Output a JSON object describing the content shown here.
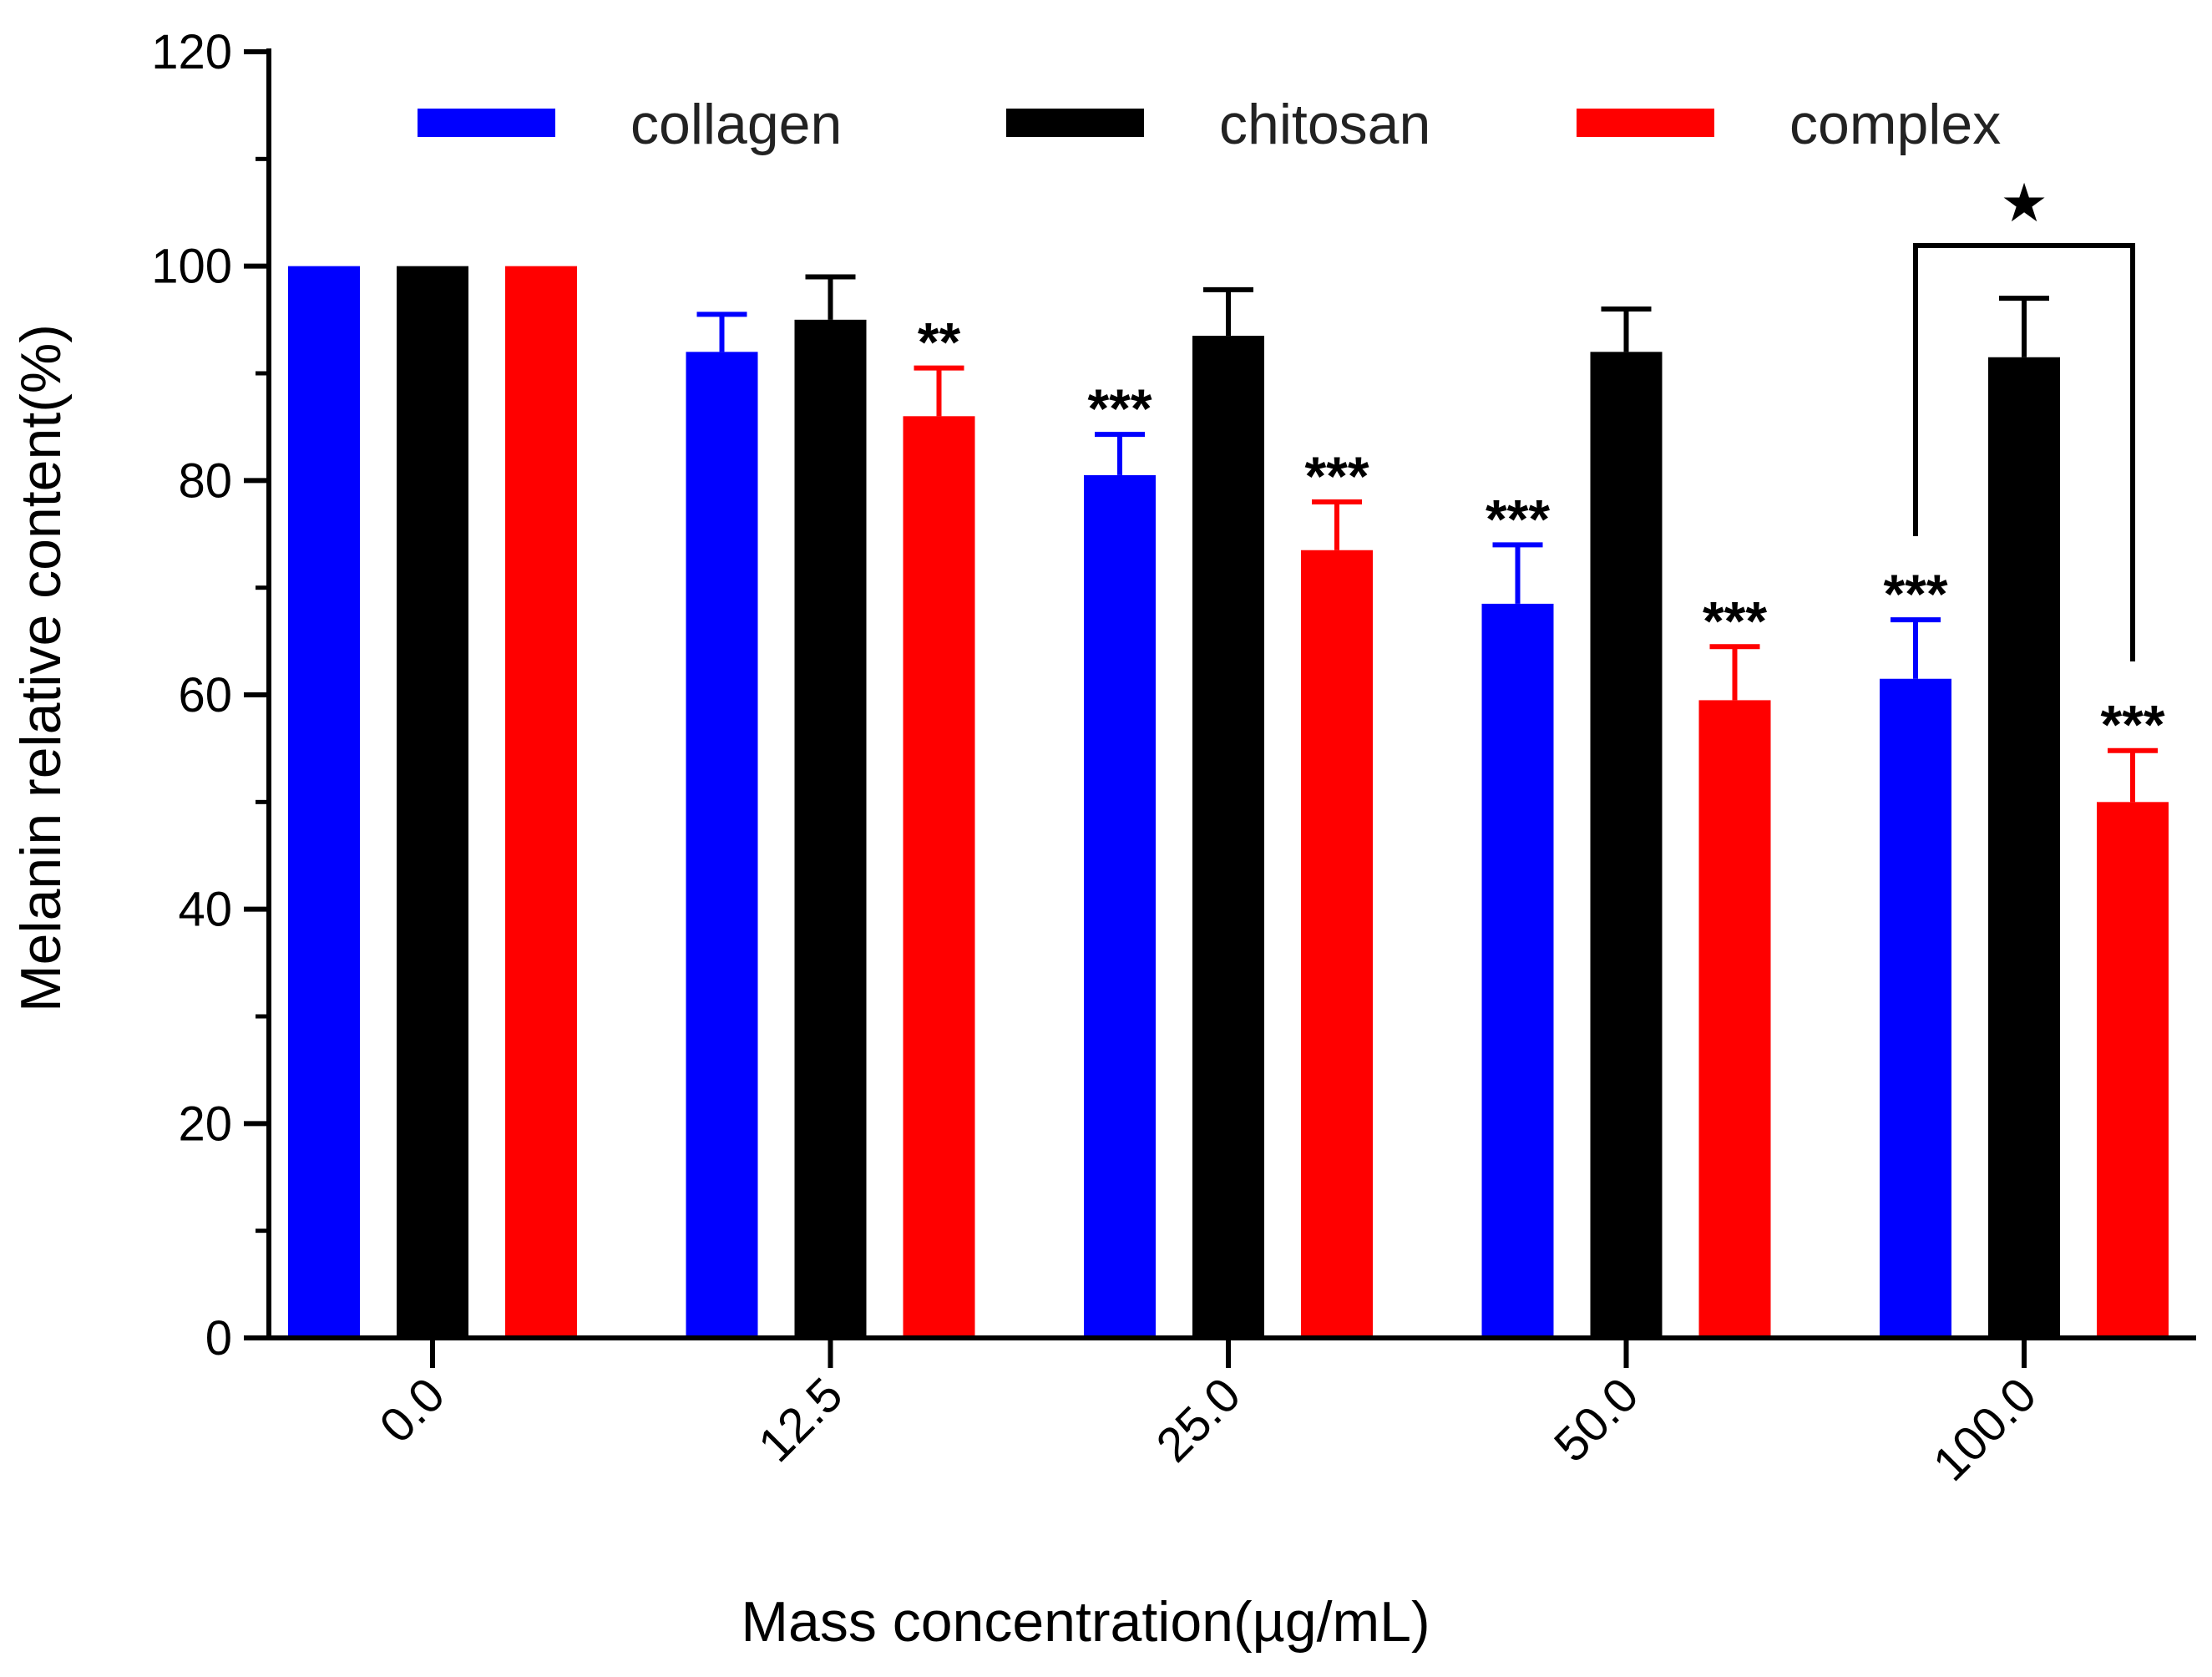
{
  "chart_data": {
    "type": "bar",
    "title": "",
    "xlabel": "Mass concentration(µg/mL)",
    "ylabel": "Melanin relative content(%)",
    "ylim": [
      0,
      120
    ],
    "yticks": [
      0,
      20,
      40,
      60,
      80,
      100,
      120
    ],
    "categories": [
      "0.0",
      "12.5",
      "25.0",
      "50.0",
      "100.0"
    ],
    "legend_position": "top",
    "series": [
      {
        "name": "collagen",
        "color": "#0000ff",
        "values": [
          100,
          92,
          80.5,
          68.5,
          61.5
        ],
        "errors": [
          0,
          3.5,
          3.8,
          5.5,
          5.5
        ],
        "significance": [
          "",
          "",
          "***",
          "***",
          "***"
        ]
      },
      {
        "name": "chitosan",
        "color": "#000000",
        "values": [
          100,
          95,
          93.5,
          92,
          91.5
        ],
        "errors": [
          0,
          4,
          4.3,
          4,
          5.5
        ],
        "significance": [
          "",
          "",
          "",
          "",
          ""
        ]
      },
      {
        "name": "complex",
        "color": "#ff0000",
        "values": [
          100,
          86,
          73.5,
          59.5,
          50
        ],
        "errors": [
          0,
          4.5,
          4.5,
          5,
          4.8
        ],
        "significance": [
          "",
          "**",
          "***",
          "***",
          "***"
        ]
      }
    ],
    "bracket": {
      "category": "100.0",
      "from_series": "collagen",
      "to_series": "complex",
      "label": "★"
    }
  }
}
